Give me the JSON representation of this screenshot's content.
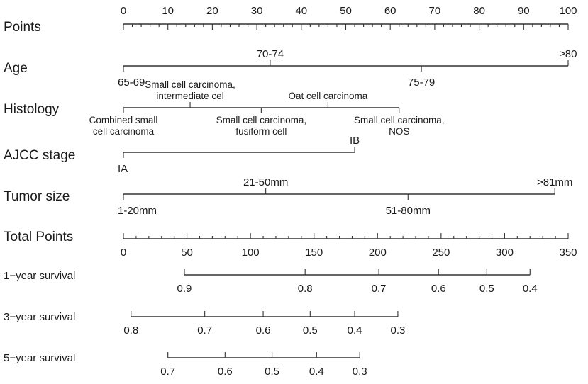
{
  "chart_data": {
    "type": "nomogram",
    "rows": [
      {
        "key": "points",
        "label": "Points",
        "kind": "numeric-top",
        "range": [
          0,
          100
        ],
        "major_ticks": [
          0,
          10,
          20,
          30,
          40,
          50,
          60,
          70,
          80,
          90,
          100
        ],
        "tick_labels": [
          "0",
          "10",
          "20",
          "30",
          "40",
          "50",
          "60",
          "70",
          "80",
          "90",
          "100"
        ],
        "minor_step": 2
      },
      {
        "key": "age",
        "label": "Age",
        "kind": "categorical",
        "scale": "points",
        "levels": [
          {
            "text": [
              "65-69"
            ],
            "value": 0,
            "side": "below"
          },
          {
            "text": [
              "70-74"
            ],
            "value": 33,
            "side": "above"
          },
          {
            "text": [
              "75-79"
            ],
            "value": 67,
            "side": "below"
          },
          {
            "text": [
              "≥80"
            ],
            "value": 100,
            "side": "above"
          }
        ]
      },
      {
        "key": "histology",
        "label": "Histology",
        "kind": "categorical",
        "scale": "points",
        "levels": [
          {
            "text": [
              "Combined small",
              "cell carcinoma"
            ],
            "value": 0,
            "side": "below"
          },
          {
            "text": [
              "Small cell carcinoma,",
              "intermediate cel"
            ],
            "value": 15,
            "side": "above"
          },
          {
            "text": [
              "Small cell carcinoma,",
              "fusiform cell"
            ],
            "value": 31,
            "side": "below"
          },
          {
            "text": [
              "Oat cell carcinoma"
            ],
            "value": 46,
            "side": "above"
          },
          {
            "text": [
              "Small cell carcinoma,",
              "NOS"
            ],
            "value": 62,
            "side": "below"
          }
        ]
      },
      {
        "key": "ajcc",
        "label": "AJCC stage",
        "kind": "categorical",
        "scale": "points",
        "levels": [
          {
            "text": [
              "IA"
            ],
            "value": 0,
            "side": "below"
          },
          {
            "text": [
              "IB"
            ],
            "value": 52,
            "side": "above"
          }
        ]
      },
      {
        "key": "tumor",
        "label": "Tumor size",
        "kind": "categorical",
        "scale": "points",
        "levels": [
          {
            "text": [
              "1-20mm"
            ],
            "value": 0,
            "side": "below"
          },
          {
            "text": [
              "21-50mm"
            ],
            "value": 32,
            "side": "above"
          },
          {
            "text": [
              "51-80mm"
            ],
            "value": 64,
            "side": "below"
          },
          {
            "text": [
              ">81mm"
            ],
            "value": 97,
            "side": "above"
          }
        ]
      },
      {
        "key": "total",
        "label": "Total Points",
        "kind": "numeric-bottom",
        "range": [
          0,
          350
        ],
        "major_ticks": [
          0,
          50,
          100,
          150,
          200,
          250,
          300,
          350
        ],
        "tick_labels": [
          "0",
          "50",
          "100",
          "150",
          "200",
          "250",
          "300",
          "350"
        ],
        "minor_step": 10
      },
      {
        "key": "surv1",
        "label": "1−year survival",
        "kind": "probability",
        "scale": "total",
        "ticks": [
          {
            "label": "0.9",
            "value": 48
          },
          {
            "label": "0.8",
            "value": 143
          },
          {
            "label": "0.7",
            "value": 201
          },
          {
            "label": "0.6",
            "value": 248
          },
          {
            "label": "0.5",
            "value": 286
          },
          {
            "label": "0.4",
            "value": 320
          }
        ]
      },
      {
        "key": "surv3",
        "label": "3−year survival",
        "kind": "probability",
        "scale": "total",
        "ticks": [
          {
            "label": "0.8",
            "value": 6
          },
          {
            "label": "0.7",
            "value": 64
          },
          {
            "label": "0.6",
            "value": 110
          },
          {
            "label": "0.5",
            "value": 147
          },
          {
            "label": "0.4",
            "value": 182
          },
          {
            "label": "0.3",
            "value": 216
          }
        ]
      },
      {
        "key": "surv5",
        "label": "5−year survival",
        "kind": "probability",
        "scale": "total",
        "ticks": [
          {
            "label": "0.7",
            "value": 35
          },
          {
            "label": "0.6",
            "value": 80
          },
          {
            "label": "0.5",
            "value": 117
          },
          {
            "label": "0.4",
            "value": 152
          },
          {
            "label": "0.3",
            "value": 186
          }
        ]
      }
    ]
  }
}
